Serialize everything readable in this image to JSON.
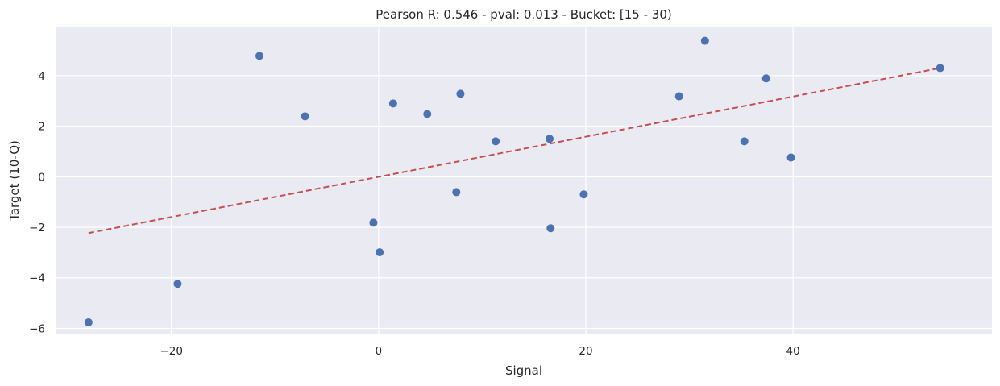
{
  "chart_data": {
    "type": "scatter",
    "title": "Pearson R: 0.546 - pval: 0.013 - Bucket: [15 - 30)",
    "xlabel": "Signal",
    "ylabel": "Target (10-Q)",
    "xlim": [
      -31.1,
      59.2
    ],
    "ylim": [
      -6.24,
      5.94
    ],
    "xticks": [
      -20,
      0,
      20,
      40
    ],
    "yticks": [
      -6,
      -4,
      -2,
      0,
      2,
      4
    ],
    "xtick_labels": [
      "−20",
      "0",
      "20",
      "40"
    ],
    "ytick_labels": [
      "−6",
      "−4",
      "−2",
      "0",
      "2",
      "4"
    ],
    "grid": true,
    "legend": null,
    "series": [
      {
        "name": "points",
        "kind": "scatter",
        "color": "#4c72b0",
        "x": [
          -28.0,
          -19.4,
          -11.5,
          -7.1,
          -0.5,
          0.1,
          1.4,
          4.7,
          7.5,
          7.9,
          11.3,
          16.5,
          16.6,
          19.8,
          29.0,
          31.5,
          35.3,
          37.4,
          39.8,
          54.2
        ],
        "y": [
          -5.76,
          -4.24,
          4.78,
          2.39,
          -1.82,
          -2.99,
          2.9,
          2.48,
          -0.61,
          3.28,
          1.4,
          1.5,
          -2.04,
          -0.7,
          3.18,
          5.38,
          1.4,
          3.89,
          0.76,
          4.3
        ]
      },
      {
        "name": "regression-fit",
        "kind": "line",
        "style": "dashed",
        "color": "#c44e52",
        "x": [
          -28.0,
          54.2
        ],
        "y": [
          -2.23,
          4.3
        ]
      }
    ]
  },
  "style": {
    "plot_bg": "#eaeaf2",
    "grid_color": "#ffffff",
    "point_color": "#4c72b0",
    "line_color": "#c44e52"
  }
}
